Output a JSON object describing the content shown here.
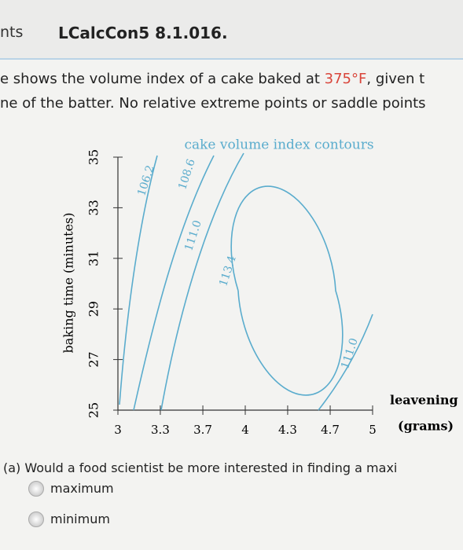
{
  "header": {
    "tab": "nts",
    "title": "LCalcCon5 8.1.016."
  },
  "text": {
    "line1": [
      "e shows the volume index of a cake baked at ",
      "375°F",
      ", given t"
    ],
    "line2": "ne of the batter. No relative extreme points or saddle points"
  },
  "chart_data": {
    "type": "contour",
    "title": "cake volume index contours",
    "x_label": [
      "leavening",
      "(grams)"
    ],
    "y_label": "baking time (minutes)",
    "xlim": [
      3,
      5
    ],
    "ylim": [
      25,
      35
    ],
    "xticks": [
      3,
      {
        "value": 3.333,
        "label": "3.3"
      },
      {
        "value": 3.667,
        "label": "3.7"
      },
      4,
      {
        "value": 4.333,
        "label": "4.3"
      },
      {
        "value": 4.667,
        "label": "4.7"
      },
      5
    ],
    "yticks": [
      25,
      27,
      29,
      31,
      33,
      35
    ],
    "values": [
      106.2,
      108.6,
      111,
      113.4,
      111
    ],
    "value_labels": [
      "106.2",
      "108.6",
      "111.0",
      "113.4",
      "111.0"
    ],
    "color": "#5aaccd"
  },
  "question": {
    "prompt": "(a) Would a food scientist be more interested in finding a maxi",
    "options": [
      "maximum",
      "minimum"
    ]
  }
}
